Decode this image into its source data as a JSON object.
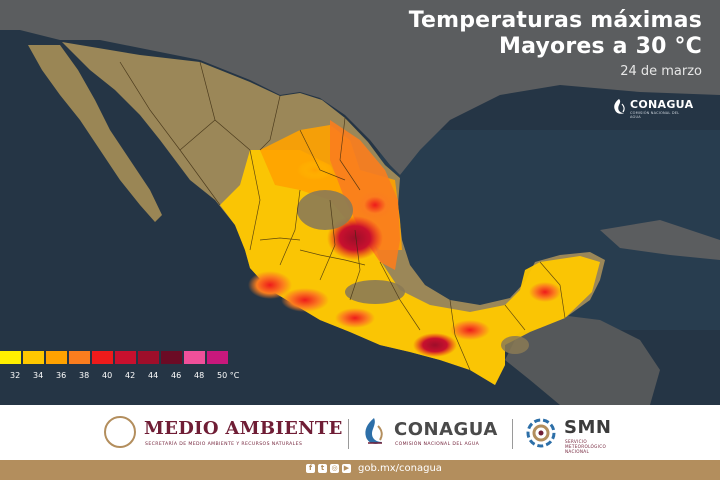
{
  "map": {
    "title_line1": "Temperaturas máximas",
    "title_line2": "Mayores a 30 °C",
    "date": "24 de marzo",
    "corner_logo": {
      "name": "CONAGUA",
      "subtitle": "COMISIÓN NACIONAL DEL AGUA"
    },
    "legend": {
      "unit": "°C",
      "labels": [
        "32",
        "34",
        "36",
        "38",
        "40",
        "42",
        "44",
        "46",
        "48",
        "50 °C"
      ],
      "colors": [
        "#ffef00",
        "#ffc800",
        "#ffa200",
        "#fb7d1e",
        "#ee1b1b",
        "#c8102e",
        "#9e0e2a",
        "#6b0b25",
        "#f0509a",
        "#c8187c"
      ]
    },
    "colors": {
      "ocean": "#2a3a4c",
      "land_neutral": "#8b7a55",
      "land_north": "#a08a5a",
      "neighbor_land": "#5c5e60",
      "state_borders": "#3a2a10"
    }
  },
  "footer": {
    "medio_ambiente": {
      "name": "MEDIO AMBIENTE",
      "subtitle": "SECRETARÍA DE MEDIO AMBIENTE Y RECURSOS NATURALES"
    },
    "conagua": {
      "name": "CONAGUA",
      "subtitle": "COMISIÓN NACIONAL DEL AGUA"
    },
    "smn": {
      "name": "SMN",
      "subtitle": "SERVICIO METEOROLÓGICO NACIONAL"
    },
    "social_icons": [
      "facebook-icon",
      "twitter-icon",
      "instagram-icon",
      "youtube-icon"
    ],
    "url": "gob.mx/conagua",
    "colors": {
      "guinda": "#6f1d35",
      "gold": "#b38e5d"
    }
  }
}
